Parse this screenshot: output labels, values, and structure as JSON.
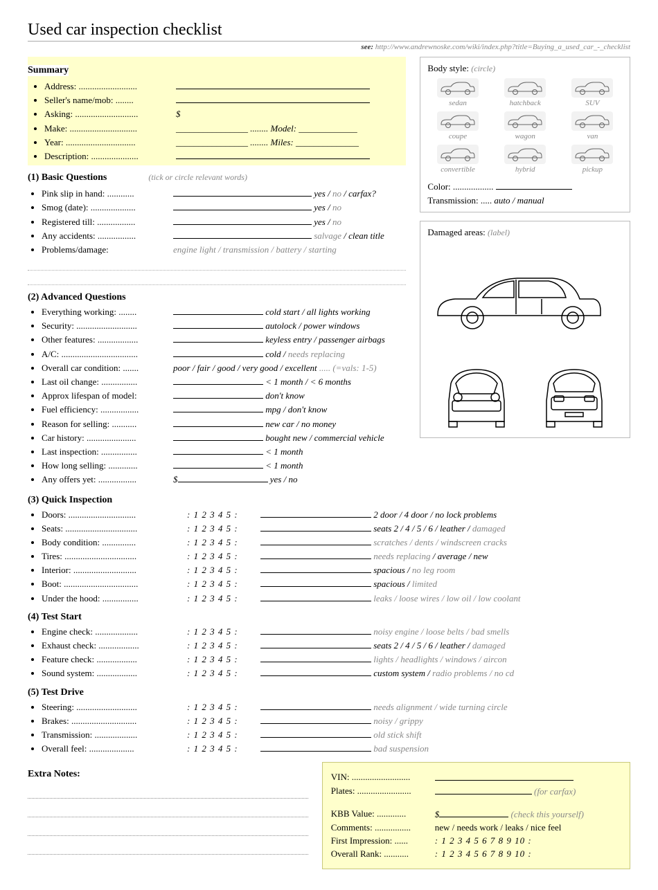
{
  "title": "Used car inspection checklist",
  "see_prefix": "see:",
  "see_url": "http://www.andrewnoske.com/wiki/index.php?title=Buying_a_used_car_-_checklist",
  "summary": {
    "title": "Summary",
    "items": [
      {
        "label": "Address: ..........................",
        "val": ""
      },
      {
        "label": "Seller's name/mob: ........",
        "val": ""
      },
      {
        "label": "Asking: ............................",
        "val": "$"
      },
      {
        "label": "Make: ..............................",
        "val": "________________ ........ Model: _____________"
      },
      {
        "label": "Year: ...............................",
        "val": "________________ ........ Miles: ______________"
      },
      {
        "label": "Description: .....................",
        "val": ""
      }
    ]
  },
  "s1": {
    "title": "(1) Basic Questions",
    "hint": "(tick or circle relevant words)",
    "items": [
      {
        "label": "Pink slip in hand: ............",
        "opts": [
          {
            "t": "yes",
            "c": "black"
          },
          {
            "t": " / ",
            "c": "black"
          },
          {
            "t": "no",
            "c": "gray"
          },
          {
            "t": " / ",
            "c": "black"
          },
          {
            "t": "carfax?",
            "c": "black"
          }
        ]
      },
      {
        "label": "Smog (date): ....................",
        "opts": [
          {
            "t": "yes",
            "c": "black"
          },
          {
            "t": " / ",
            "c": "black"
          },
          {
            "t": "no",
            "c": "gray"
          }
        ]
      },
      {
        "label": "Registered till: .................",
        "opts": [
          {
            "t": "yes",
            "c": "black"
          },
          {
            "t": " / ",
            "c": "black"
          },
          {
            "t": "no",
            "c": "gray"
          }
        ]
      },
      {
        "label": "Any accidents: .................",
        "opts": [
          {
            "t": "salvage",
            "c": "gray"
          },
          {
            "t": " / ",
            "c": "black"
          },
          {
            "t": "clean title",
            "c": "black"
          }
        ]
      },
      {
        "label": "Problems/damage:",
        "opts": [
          {
            "t": "engine light / transmission / battery / starting",
            "c": "gray"
          }
        ],
        "noline": true
      }
    ]
  },
  "s2": {
    "title": "(2) Advanced Questions",
    "items": [
      {
        "label": "Everything working: ........",
        "opts": [
          {
            "t": "cold start / all lights working",
            "c": "black"
          }
        ]
      },
      {
        "label": "Security: ...........................",
        "opts": [
          {
            "t": "autolock / power windows",
            "c": "black"
          }
        ]
      },
      {
        "label": "Other features: ..................",
        "opts": [
          {
            "t": "keyless entry / passenger airbags",
            "c": "black"
          }
        ]
      },
      {
        "label": "A/C: ..................................",
        "opts": [
          {
            "t": "cold",
            "c": "black"
          },
          {
            "t": " / ",
            "c": "black"
          },
          {
            "t": "needs replacing",
            "c": "gray"
          }
        ]
      },
      {
        "label": "Overall car condition: .......",
        "opts": [
          {
            "t": "poor / fair / good / very good / excellent",
            "c": "black"
          },
          {
            "t": " ..... (=vals: 1-5)",
            "c": "gray"
          }
        ],
        "noline": true
      },
      {
        "label": "Last oil change: ................",
        "opts": [
          {
            "t": "< 1 month / < 6 months",
            "c": "black"
          }
        ]
      },
      {
        "label": "Approx lifespan of model:",
        "opts": [
          {
            "t": "don't know",
            "c": "black"
          }
        ]
      },
      {
        "label": "Fuel efficiency: .................",
        "opts": [
          {
            "t": "mpg / don't know",
            "c": "black"
          }
        ]
      },
      {
        "label": "Reason for selling: ...........",
        "opts": [
          {
            "t": "new car / no money",
            "c": "black"
          }
        ]
      },
      {
        "label": "Car history: ......................",
        "opts": [
          {
            "t": "bought new / commercial vehicle",
            "c": "black"
          }
        ]
      },
      {
        "label": "Last inspection: ................",
        "opts": [
          {
            "t": "< 1 month",
            "c": "black"
          }
        ]
      },
      {
        "label": "How long selling: .............",
        "opts": [
          {
            "t": "< 1 month",
            "c": "black"
          }
        ]
      },
      {
        "label": "Any offers yet: .................",
        "pre": "$",
        "opts": [
          {
            "t": "yes / no",
            "c": "black"
          }
        ]
      }
    ]
  },
  "s3": {
    "title": "(3) Quick Inspection",
    "rating": ": 1 2 3 4 5 :",
    "items": [
      {
        "label": "Doors: ..............................",
        "opts": [
          {
            "t": "2 door / 4 door / no lock problems",
            "c": "black"
          }
        ]
      },
      {
        "label": "Seats: ................................",
        "opts": [
          {
            "t": "seats 2 / 4 / 5 / 6 / leather",
            "c": "black"
          },
          {
            "t": " / ",
            "c": "black"
          },
          {
            "t": "damaged",
            "c": "gray"
          }
        ]
      },
      {
        "label": "Body condition: ...............",
        "opts": [
          {
            "t": "scratches / dents / windscreen cracks",
            "c": "gray"
          }
        ]
      },
      {
        "label": "Tires: ................................",
        "opts": [
          {
            "t": "needs replacing",
            "c": "gray"
          },
          {
            "t": " / ",
            "c": "black"
          },
          {
            "t": "average / new",
            "c": "black"
          }
        ]
      },
      {
        "label": "Interior: ............................",
        "opts": [
          {
            "t": "spacious",
            "c": "black"
          },
          {
            "t": " / ",
            "c": "black"
          },
          {
            "t": "no leg room",
            "c": "gray"
          }
        ]
      },
      {
        "label": "Boot: .................................",
        "opts": [
          {
            "t": "spacious",
            "c": "black"
          },
          {
            "t": " / ",
            "c": "black"
          },
          {
            "t": "limited",
            "c": "gray"
          }
        ]
      },
      {
        "label": "Under the hood: ................",
        "opts": [
          {
            "t": "leaks / loose wires / low oil / low coolant",
            "c": "gray"
          }
        ]
      }
    ]
  },
  "s4": {
    "title": "(4) Test Start",
    "rating": ": 1 2 3 4 5 :",
    "items": [
      {
        "label": "Engine check: ...................",
        "opts": [
          {
            "t": "noisy engine / loose belts / bad smells",
            "c": "gray"
          }
        ]
      },
      {
        "label": "Exhaust check: ..................",
        "opts": [
          {
            "t": "seats 2 / 4 / 5 / 6 / leather",
            "c": "black"
          },
          {
            "t": " / ",
            "c": "black"
          },
          {
            "t": "damaged",
            "c": "gray"
          }
        ]
      },
      {
        "label": "Feature check: ..................",
        "opts": [
          {
            "t": "lights / headlights / windows / aircon",
            "c": "gray"
          }
        ]
      },
      {
        "label": "Sound system: ..................",
        "opts": [
          {
            "t": "custom system",
            "c": "black"
          },
          {
            "t": " / ",
            "c": "black"
          },
          {
            "t": "radio problems / no cd",
            "c": "gray"
          }
        ]
      }
    ]
  },
  "s5": {
    "title": "(5) Test Drive",
    "rating": ": 1 2 3 4 5 :",
    "items": [
      {
        "label": "Steering: ...........................",
        "opts": [
          {
            "t": "needs alignment / wide turning circle",
            "c": "gray"
          }
        ]
      },
      {
        "label": "Brakes: .............................",
        "opts": [
          {
            "t": "noisy / grippy",
            "c": "gray"
          }
        ]
      },
      {
        "label": "Transmission: ...................",
        "opts": [
          {
            "t": "old stick shift",
            "c": "gray"
          }
        ]
      },
      {
        "label": "Overall feel:  ....................",
        "opts": [
          {
            "t": "bad suspension",
            "c": "gray"
          }
        ]
      }
    ]
  },
  "extra_notes": "Extra Notes:",
  "bodystyle": {
    "title": "Body style:",
    "hint": "(circle)",
    "types": [
      "sedan",
      "hatchback",
      "SUV",
      "coupe",
      "wagon",
      "van",
      "convertible",
      "hybrid",
      "pickup"
    ]
  },
  "color_label": "Color: ..................",
  "trans_label": "Transmission: .....",
  "trans_opts": "auto / manual",
  "damaged_title": "Damaged areas:",
  "damaged_hint": "(label)",
  "vin_box": {
    "vin": "VIN: ..........................",
    "plates": "Plates: ........................",
    "plates_hint": "(for carfax)",
    "kbb": "KBB Value: .............",
    "kbb_pre": "$",
    "kbb_hint": "(check this yourself)",
    "comments": "Comments: ................",
    "comments_val": "new / needs work / leaks / nice feel",
    "first": "First Impression: ......",
    "overall": "Overall Rank: ...........",
    "rating10": ": 1 2 3 4 5 6 7 8 9 10 :"
  }
}
